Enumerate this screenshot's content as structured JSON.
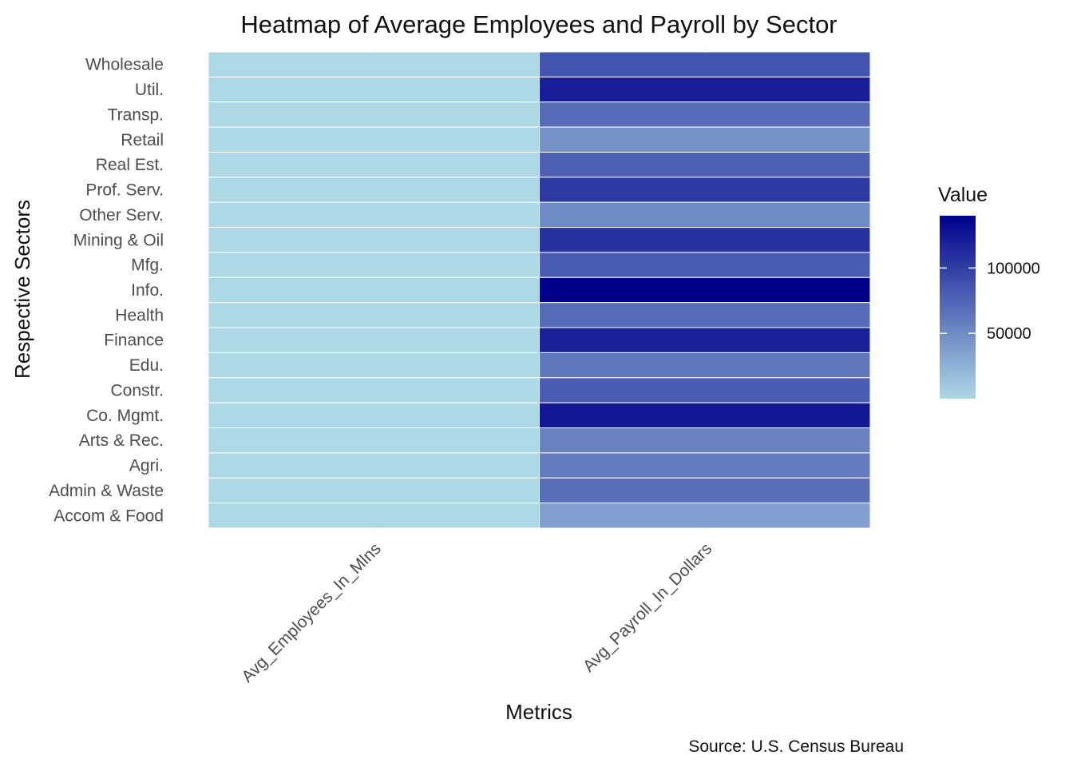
{
  "chart_data": {
    "type": "heatmap",
    "title": "Heatmap of Average Employees and Payroll by Sector",
    "xlabel": "Metrics",
    "ylabel": "Respective Sectors",
    "caption": "Source: U.S. Census Bureau",
    "legend": {
      "title": "Value",
      "position": "right",
      "ticks": [
        50000,
        100000
      ],
      "tick_labels": [
        "50000",
        "100000"
      ],
      "range": [
        0,
        140000
      ]
    },
    "color_low": "#add8e6",
    "color_high": "#00008b",
    "grid": false,
    "x_categories": [
      "Avg_Employees_In_Mlns",
      "Avg_Payroll_In_Dollars"
    ],
    "y_categories": [
      "Wholesale",
      "Util.",
      "Transp.",
      "Retail",
      "Real Est.",
      "Prof. Serv.",
      "Other Serv.",
      "Mining & Oil",
      "Mfg.",
      "Info.",
      "Health",
      "Finance",
      "Edu.",
      "Constr.",
      "Co. Mgmt.",
      "Arts & Rec.",
      "Agri.",
      "Admin & Waste",
      "Accom & Food"
    ],
    "series": [
      {
        "name": "Avg_Employees_In_Mlns",
        "values": [
          6,
          0.6,
          5,
          16,
          2,
          9,
          5,
          0.6,
          12,
          3.5,
          21,
          6.5,
          3.8,
          7,
          3.5,
          2.5,
          0.2,
          12,
          14
        ]
      },
      {
        "name": "Avg_Payroll_In_Dollars",
        "values": [
          85000,
          120000,
          70000,
          45000,
          78000,
          103000,
          50000,
          108000,
          80000,
          140000,
          70000,
          118000,
          62000,
          80000,
          125000,
          55000,
          60000,
          68000,
          36000
        ]
      }
    ]
  }
}
